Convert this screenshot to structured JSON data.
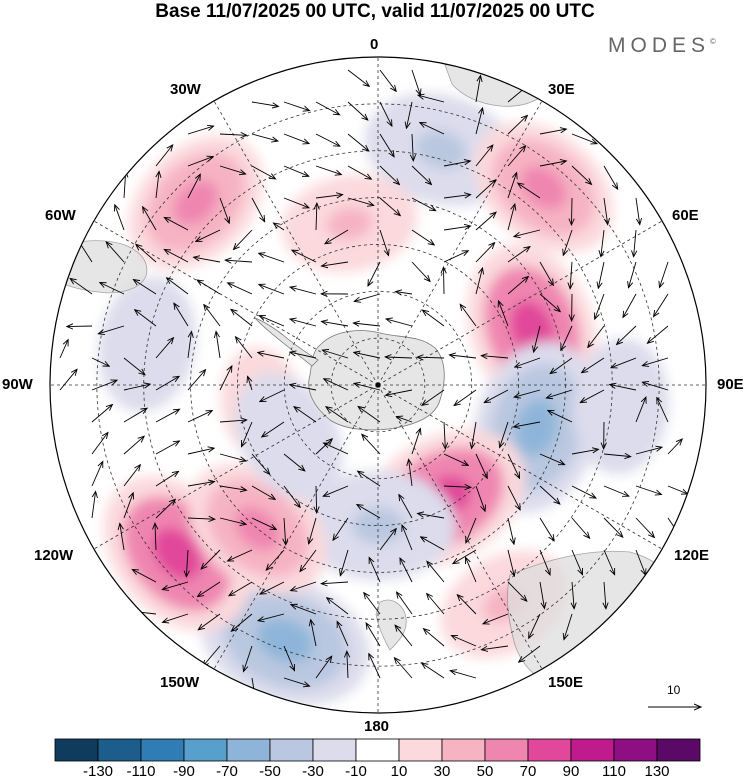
{
  "title": "Base 11/07/2025 00 UTC, valid 11/07/2025 00 UTC",
  "brand": "MODES",
  "brand_mark": "©",
  "longitude_labels": {
    "lon_0": "0",
    "lon_30e": "30E",
    "lon_60e": "60E",
    "lon_90e": "90E",
    "lon_120e": "120E",
    "lon_150e": "150E",
    "lon_180": "180",
    "lon_150w": "150W",
    "lon_120w": "120W",
    "lon_90w": "90W",
    "lon_60w": "60W",
    "lon_30w": "30W"
  },
  "reference_vector_label": "10",
  "colorbar": {
    "colors": [
      "#0f3b5c",
      "#1d5d8c",
      "#2f7db4",
      "#58a0cc",
      "#8eb5d9",
      "#b9c7e0",
      "#dcdcec",
      "#ffffff",
      "#fbd9dc",
      "#f6b3c2",
      "#ef86b0",
      "#e1479a",
      "#c01b8c",
      "#8e0e84",
      "#5a0a66"
    ],
    "tick_labels": [
      "-130",
      "-110",
      "-90",
      "-70",
      "-50",
      "-30",
      "-10",
      "10",
      "30",
      "50",
      "70",
      "90",
      "110",
      "130"
    ]
  },
  "anomaly_cells": [
    {
      "lon": 15,
      "lat": -38,
      "value": -50
    },
    {
      "lon": 40,
      "lat": -35,
      "value": 50
    },
    {
      "lon": -45,
      "lat": -35,
      "value": 50
    },
    {
      "lon": 70,
      "lat": -55,
      "value": 70
    },
    {
      "lon": 105,
      "lat": -55,
      "value": -70
    },
    {
      "lon": 150,
      "lat": -62,
      "value": 70
    },
    {
      "lon": 180,
      "lat": -60,
      "value": -50
    },
    {
      "lon": 150,
      "lat": -36,
      "value": 30
    },
    {
      "lon": -160,
      "lat": -32,
      "value": -70
    },
    {
      "lon": -130,
      "lat": -34,
      "value": 70
    },
    {
      "lon": -140,
      "lat": -50,
      "value": 50
    },
    {
      "lon": -80,
      "lat": -40,
      "value": -30
    },
    {
      "lon": -10,
      "lat": -55,
      "value": 30
    },
    {
      "lon": 95,
      "lat": -38,
      "value": -30
    },
    {
      "lon": -100,
      "lat": -65,
      "value": 10
    },
    {
      "lon": -120,
      "lat": -68,
      "value": -30
    }
  ]
}
